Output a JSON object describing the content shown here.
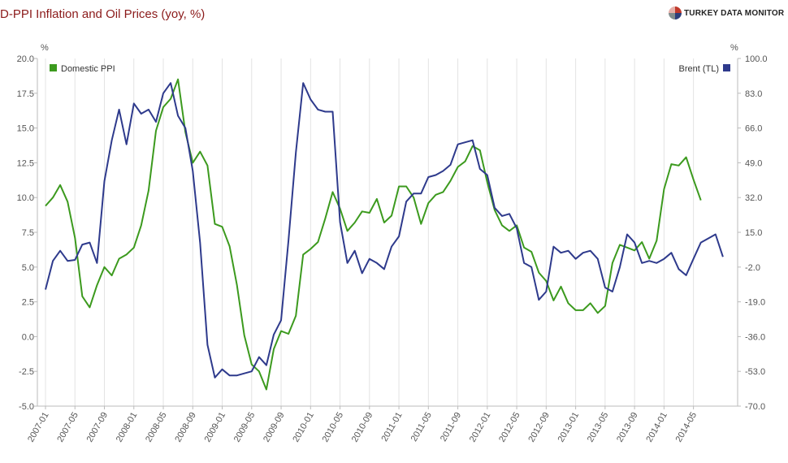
{
  "header": {
    "title": "D-PPI Inflation and Oil Prices (yoy, %)",
    "brand": "TURKEY DATA MONITOR"
  },
  "chart_data": {
    "type": "line",
    "title": "D-PPI Inflation and Oil Prices (yoy, %)",
    "left_axis": {
      "unit": "%",
      "min": -5.0,
      "max": 20.0,
      "ticks": [
        "20.0",
        "17.5",
        "15.0",
        "12.5",
        "10.0",
        "7.5",
        "5.0",
        "2.5",
        "0.0",
        "-2.5",
        "-5.0"
      ]
    },
    "right_axis": {
      "unit": "%",
      "min": -70.0,
      "max": 100.0,
      "ticks": [
        "100.0",
        "83.0",
        "66.0",
        "49.0",
        "32.0",
        "15.0",
        "-2.0",
        "-19.0",
        "-36.0",
        "-53.0",
        "-70.0"
      ]
    },
    "x_tick_labels": [
      "2007-01",
      "2007-05",
      "2007-09",
      "2008-01",
      "2008-05",
      "2008-09",
      "2009-01",
      "2009-05",
      "2009-09",
      "2010-01",
      "2010-05",
      "2010-09",
      "2011-01",
      "2011-05",
      "2011-09",
      "2012-01",
      "2012-05",
      "2012-09",
      "2013-01",
      "2013-05",
      "2013-09",
      "2014-01",
      "2014-05"
    ],
    "x_start": "2007-01",
    "grid": "vertical",
    "series": [
      {
        "name": "Domestic PPI",
        "axis": "left",
        "color": "#3c9a1e",
        "legend_position": "top-left",
        "values": [
          9.4,
          10.0,
          10.9,
          9.7,
          7.1,
          2.9,
          2.1,
          3.7,
          5.0,
          4.4,
          5.6,
          5.9,
          6.4,
          8.0,
          10.5,
          14.8,
          16.5,
          17.1,
          18.5,
          14.7,
          12.5,
          13.3,
          12.3,
          8.1,
          7.9,
          6.5,
          3.7,
          0.1,
          -2.0,
          -2.5,
          -3.8,
          -0.9,
          0.4,
          0.2,
          1.5,
          5.9,
          6.3,
          6.8,
          8.5,
          10.4,
          9.2,
          7.6,
          8.2,
          9.0,
          8.9,
          9.9,
          8.2,
          8.7,
          10.8,
          10.8,
          10.0,
          8.1,
          9.6,
          10.2,
          10.4,
          11.2,
          12.2,
          12.6,
          13.7,
          13.4,
          11.1,
          9.1,
          8.0,
          7.6,
          8.0,
          6.4,
          6.1,
          4.6,
          4.0,
          2.6,
          3.6,
          2.4,
          1.9,
          1.9,
          2.4,
          1.7,
          2.2,
          5.3,
          6.6,
          6.4,
          6.2,
          6.8,
          5.6,
          6.9,
          10.6,
          12.4,
          12.3,
          12.9,
          11.3,
          9.8
        ]
      },
      {
        "name": "Brent (TL)",
        "axis": "right",
        "color": "#2e3a8c",
        "legend_position": "top-right",
        "values": [
          -13.0,
          1.0,
          6.0,
          1.0,
          1.5,
          9.0,
          10.0,
          0.0,
          40.0,
          60.0,
          75.0,
          58.0,
          78.0,
          73.0,
          75.0,
          69.0,
          83.0,
          88.0,
          72.0,
          66.0,
          45.0,
          10.0,
          -40.0,
          -56.0,
          -52.0,
          -55.0,
          -55.0,
          -54.0,
          -53.0,
          -46.0,
          -50.0,
          -35.0,
          -28.0,
          11.0,
          54.0,
          88.0,
          80.0,
          75.0,
          74.0,
          74.0,
          20.0,
          0.0,
          6.0,
          -5.0,
          2.0,
          0.0,
          -3.0,
          8.0,
          13.0,
          30.0,
          34.0,
          34.0,
          42.0,
          43.0,
          45.0,
          48.0,
          58.0,
          59.0,
          60.0,
          46.0,
          43.0,
          27.0,
          23.0,
          24.0,
          17.0,
          0.0,
          -2.0,
          -18.0,
          -14.0,
          8.0,
          5.0,
          6.0,
          2.0,
          5.0,
          6.0,
          2.0,
          -12.0,
          -14.0,
          -2.0,
          14.0,
          10.0,
          0.0,
          1.0,
          0.0,
          2.0,
          5.0,
          -3.0,
          -6.0,
          2.0,
          10.0,
          12.0,
          14.0,
          3.0
        ]
      }
    ]
  }
}
